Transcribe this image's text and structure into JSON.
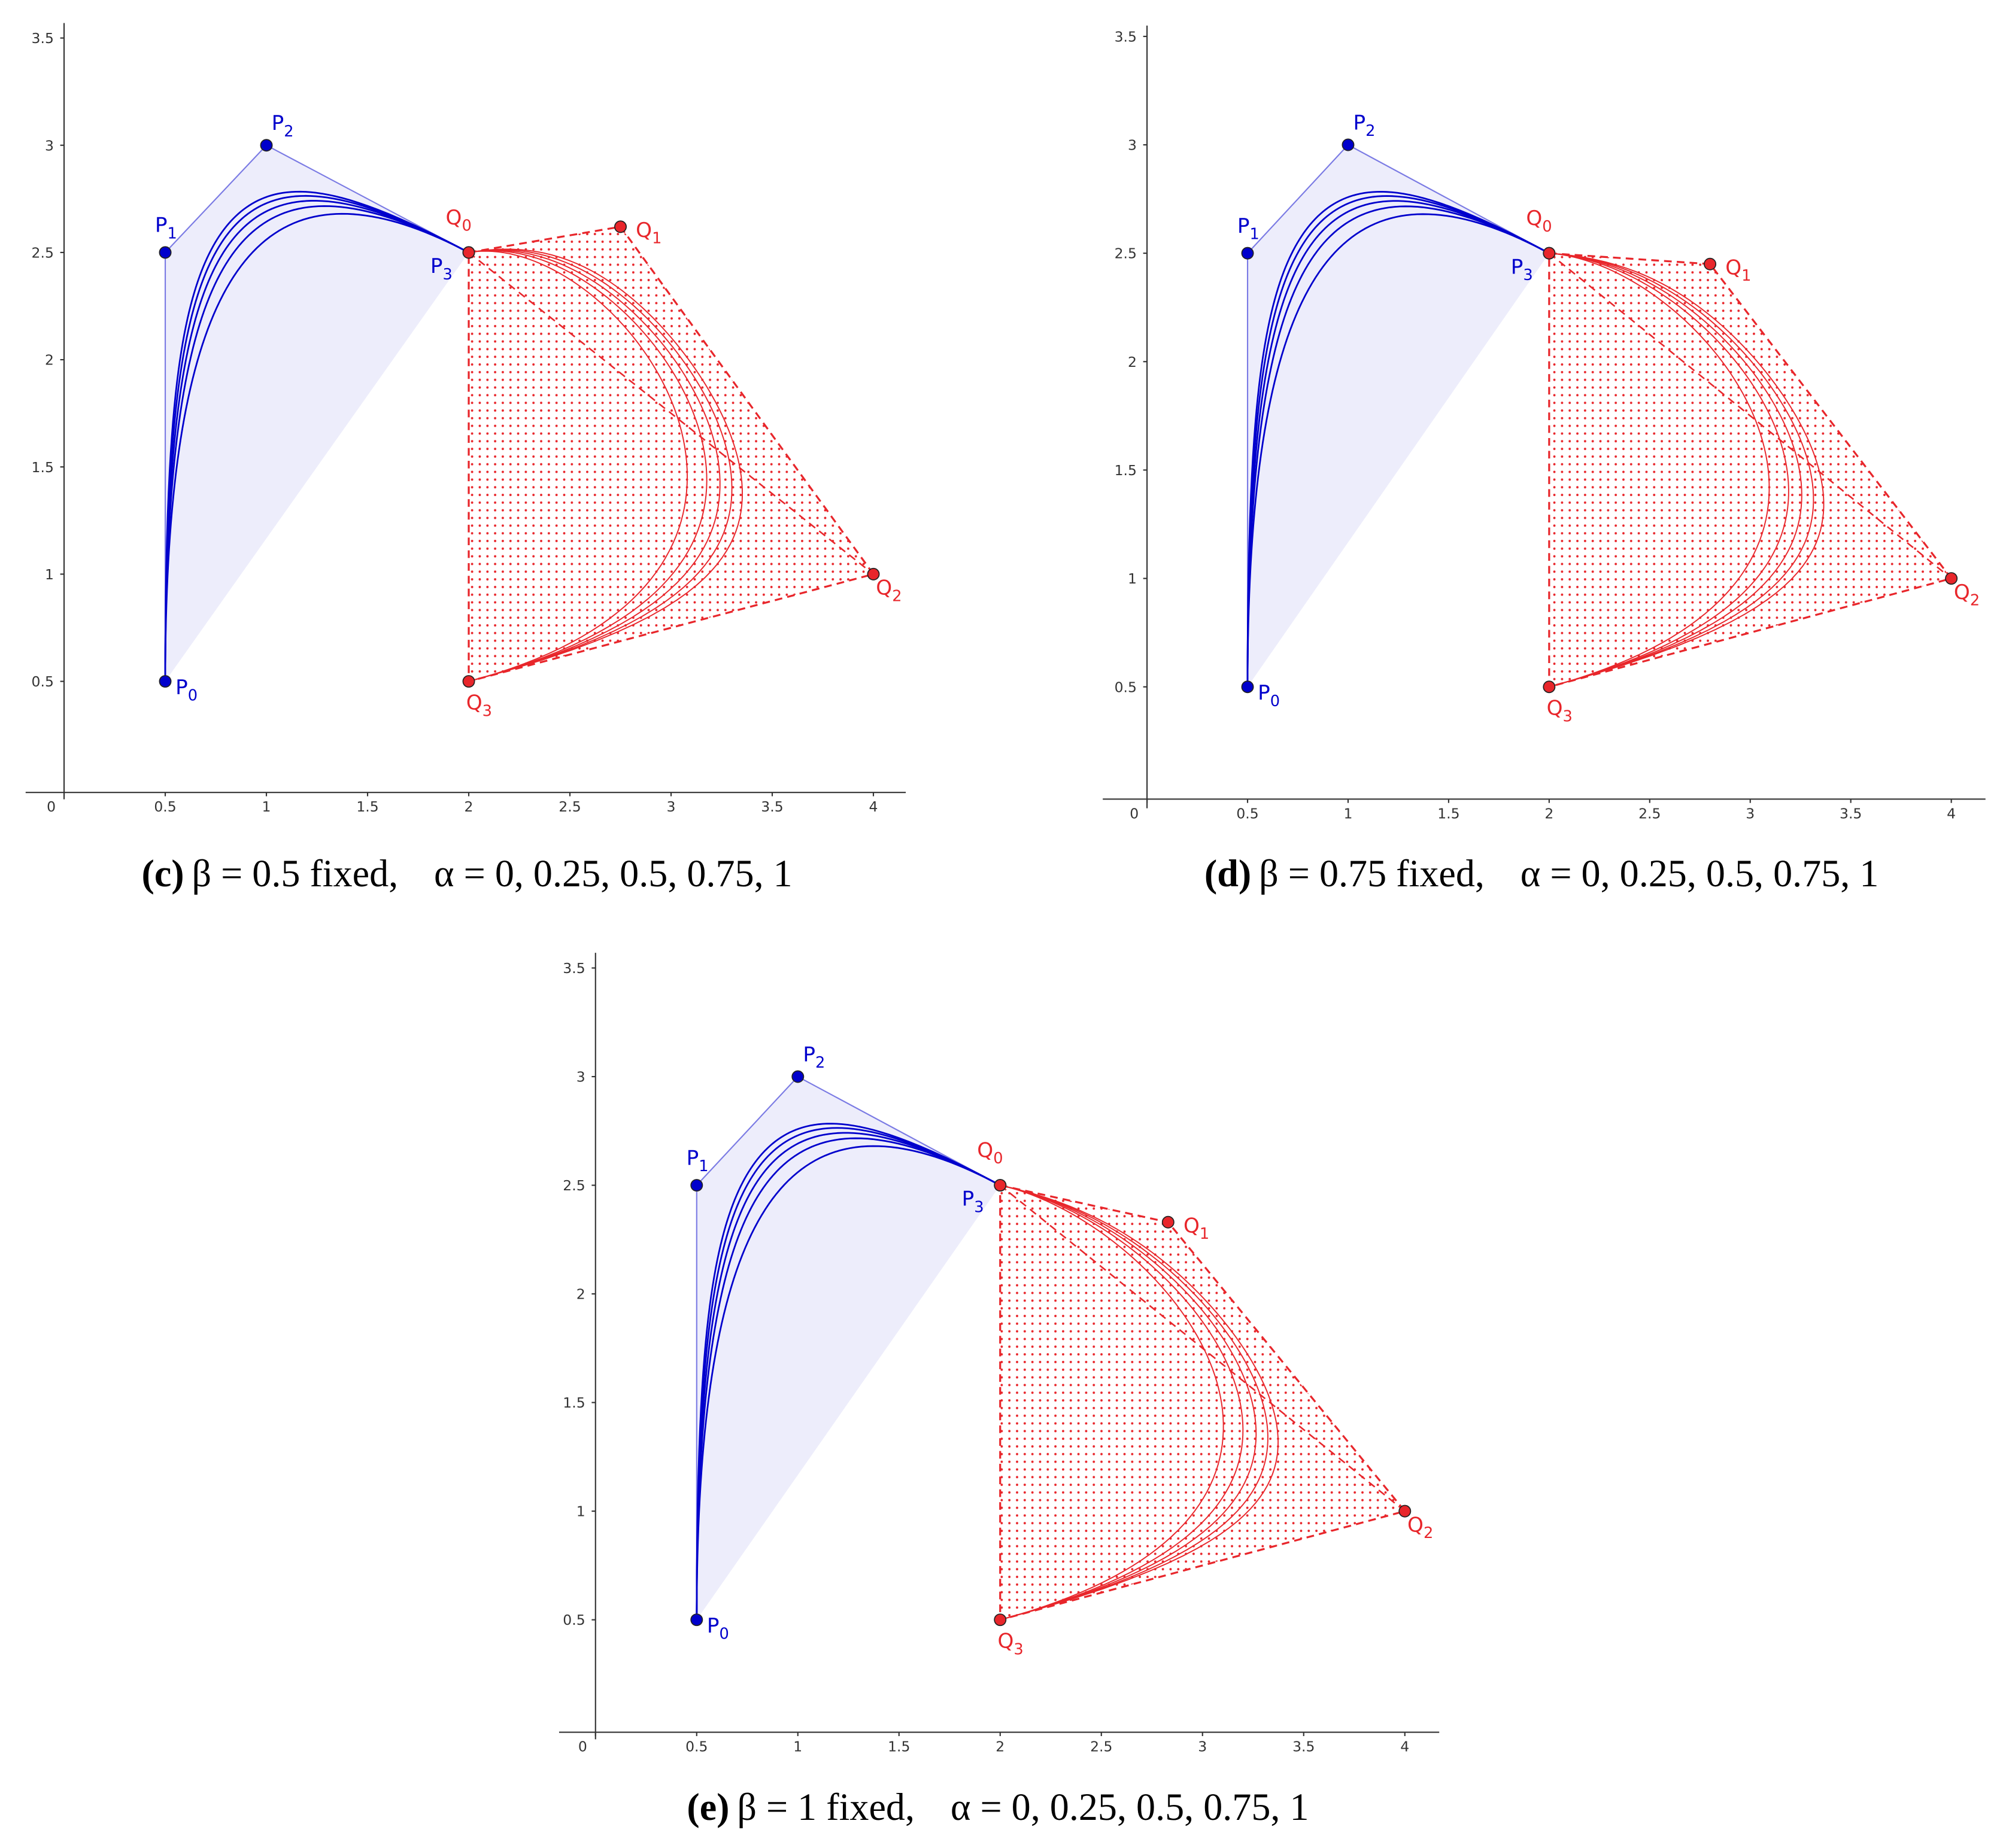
{
  "chart_data": [
    {
      "type": "bezier",
      "caption": {
        "tag": "(c)",
        "beta": "β = 0.5 fixed,",
        "alpha": "α = 0, 0.25, 0.5, 0.75, 1"
      },
      "xlim": [
        -0.19,
        4.16
      ],
      "ylim": [
        -0.05,
        3.57
      ],
      "xticks": [
        0,
        0.5,
        1,
        1.5,
        2,
        2.5,
        3,
        3.5,
        4
      ],
      "yticks": [
        0.5,
        1,
        1.5,
        2,
        2.5,
        3,
        3.5
      ],
      "series": [
        {
          "name": "P",
          "color": "#0000cc",
          "subs": [
            "0",
            "1",
            "2",
            "3"
          ],
          "x": [
            0.5,
            0.5,
            1,
            2
          ],
          "values": [
            0.5,
            2.5,
            3,
            2.5
          ]
        },
        {
          "name": "Q",
          "color": "#e8262b",
          "subs": [
            "0",
            "1",
            "2",
            "3"
          ],
          "x": [
            2,
            2.75,
            4,
            2
          ],
          "values": [
            2.5,
            2.62,
            1,
            0.5
          ]
        }
      ]
    },
    {
      "type": "bezier",
      "caption": {
        "tag": "(d)",
        "beta": "β = 0.75 fixed,",
        "alpha": "α = 0, 0.25, 0.5, 0.75, 1"
      },
      "xlim": [
        -0.22,
        4.17
      ],
      "ylim": [
        -0.06,
        3.55
      ],
      "xticks": [
        0,
        0.5,
        1,
        1.5,
        2,
        2.5,
        3,
        3.5,
        4
      ],
      "yticks": [
        0.5,
        1,
        1.5,
        2,
        2.5,
        3,
        3.5
      ],
      "series": [
        {
          "name": "P",
          "color": "#0000cc",
          "subs": [
            "0",
            "1",
            "2",
            "3"
          ],
          "x": [
            0.5,
            0.5,
            1,
            2
          ],
          "values": [
            0.5,
            2.5,
            3,
            2.5
          ]
        },
        {
          "name": "Q",
          "color": "#e8262b",
          "subs": [
            "0",
            "1",
            "2",
            "3"
          ],
          "x": [
            2,
            2.8,
            4,
            2
          ],
          "values": [
            2.5,
            2.45,
            1,
            0.5
          ]
        }
      ]
    },
    {
      "type": "bezier",
      "caption": {
        "tag": "(e)",
        "beta": "β = 1 fixed,",
        "alpha": "α = 0, 0.25, 0.5, 0.75, 1"
      },
      "xlim": [
        -0.18,
        4.17
      ],
      "ylim": [
        -0.05,
        3.57
      ],
      "xticks": [
        0,
        0.5,
        1,
        1.5,
        2,
        2.5,
        3,
        3.5,
        4
      ],
      "yticks": [
        0.5,
        1,
        1.5,
        2,
        2.5,
        3,
        3.5
      ],
      "series": [
        {
          "name": "P",
          "color": "#0000cc",
          "subs": [
            "0",
            "1",
            "2",
            "3"
          ],
          "x": [
            0.5,
            0.5,
            1,
            2
          ],
          "values": [
            0.5,
            2.5,
            3,
            2.5
          ]
        },
        {
          "name": "Q",
          "color": "#e8262b",
          "subs": [
            "0",
            "1",
            "2",
            "3"
          ],
          "x": [
            2,
            2.83,
            4,
            2
          ],
          "values": [
            2.5,
            2.33,
            1,
            0.5
          ]
        }
      ]
    }
  ]
}
